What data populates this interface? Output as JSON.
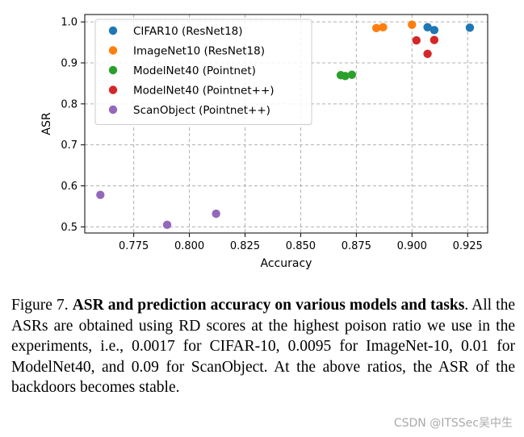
{
  "chart_data": {
    "type": "scatter",
    "title": "",
    "xlabel": "Accuracy",
    "ylabel": "ASR",
    "xlim": [
      0.753,
      0.934
    ],
    "ylim": [
      0.485,
      1.018
    ],
    "xticks": [
      0.775,
      0.8,
      0.825,
      0.85,
      0.875,
      0.9,
      0.925
    ],
    "xtick_labels": [
      "0.775",
      "0.800",
      "0.825",
      "0.850",
      "0.875",
      "0.900",
      "0.925"
    ],
    "yticks": [
      0.5,
      0.6,
      0.7,
      0.8,
      0.9,
      1.0
    ],
    "ytick_labels": [
      "0.5",
      "0.6",
      "0.7",
      "0.8",
      "0.9",
      "1.0"
    ],
    "grid": true,
    "legend_position": "top-left",
    "series": [
      {
        "name": "CIFAR10 (ResNet18)",
        "color": "#1f77b4",
        "x": [
          0.907,
          0.91,
          0.926
        ],
        "y": [
          0.987,
          0.98,
          0.986
        ]
      },
      {
        "name": "ImageNet10 (ResNet18)",
        "color": "#ff7f0e",
        "x": [
          0.884,
          0.887,
          0.9
        ],
        "y": [
          0.985,
          0.987,
          0.993
        ]
      },
      {
        "name": "ModelNet40 (Pointnet)",
        "color": "#2ca02c",
        "x": [
          0.868,
          0.87,
          0.873
        ],
        "y": [
          0.87,
          0.868,
          0.871
        ]
      },
      {
        "name": "ModelNet40 (Pointnet++)",
        "color": "#d62728",
        "x": [
          0.902,
          0.907,
          0.91
        ],
        "y": [
          0.955,
          0.922,
          0.956
        ]
      },
      {
        "name": "ScanObject (Pointnet++)",
        "color": "#9467bd",
        "x": [
          0.76,
          0.79,
          0.812
        ],
        "y": [
          0.578,
          0.505,
          0.532
        ]
      }
    ]
  },
  "caption": {
    "prefix": "Figure 7. ",
    "bold": "ASR and prediction accuracy on various models and tasks",
    "rest": ". All the ASRs are obtained using RD scores at the highest poison ratio we use in the experiments, i.e., 0.0017 for CIFAR-10, 0.0095 for ImageNet-10, 0.01 for ModelNet40, and 0.09 for ScanObject. At the above ratios, the ASR of the backdoors becomes stable."
  },
  "watermark": "CSDN @ITSSec吴中生"
}
